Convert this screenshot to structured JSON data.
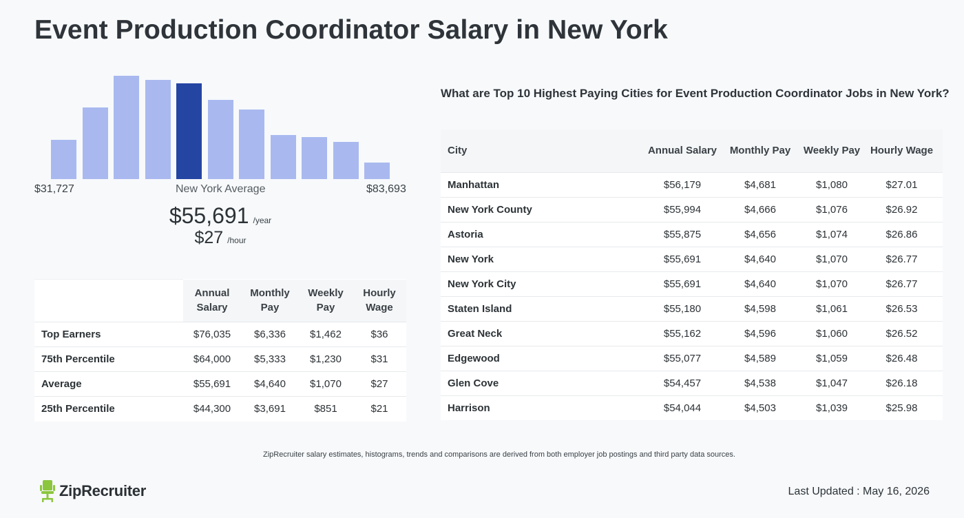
{
  "title": "Event Production Coordinator Salary in New York",
  "histogram": {
    "bars": [
      0.37,
      0.68,
      0.98,
      0.94,
      0.91,
      0.75,
      0.66,
      0.42,
      0.4,
      0.35,
      0.16
    ],
    "highlight_index": 4,
    "bar_color": "#a9b9f0",
    "highlight_color": "#2545a3",
    "min_label": "$31,727",
    "max_label": "$83,693",
    "mid_label": "New York Average"
  },
  "average": {
    "annual": "$55,691",
    "annual_unit": "/year",
    "hourly": "$27",
    "hourly_unit": "/hour"
  },
  "percentiles": {
    "headers": [
      "Annual Salary",
      "Monthly Pay",
      "Weekly Pay",
      "Hourly Wage"
    ],
    "rows": [
      {
        "label": "Top Earners",
        "values": [
          "$76,035",
          "$6,336",
          "$1,462",
          "$36"
        ]
      },
      {
        "label": "75th Percentile",
        "values": [
          "$64,000",
          "$5,333",
          "$1,230",
          "$31"
        ]
      },
      {
        "label": "Average",
        "values": [
          "$55,691",
          "$4,640",
          "$1,070",
          "$27"
        ]
      },
      {
        "label": "25th Percentile",
        "values": [
          "$44,300",
          "$3,691",
          "$851",
          "$21"
        ]
      }
    ]
  },
  "cities": {
    "heading": "What are Top 10 Highest Paying Cities for Event Production Coordinator Jobs in New York?",
    "headers": [
      "City",
      "Annual Salary",
      "Monthly Pay",
      "Weekly Pay",
      "Hourly Wage"
    ],
    "rows": [
      {
        "city": "Manhattan",
        "values": [
          "$56,179",
          "$4,681",
          "$1,080",
          "$27.01"
        ]
      },
      {
        "city": "New York County",
        "values": [
          "$55,994",
          "$4,666",
          "$1,076",
          "$26.92"
        ]
      },
      {
        "city": "Astoria",
        "values": [
          "$55,875",
          "$4,656",
          "$1,074",
          "$26.86"
        ]
      },
      {
        "city": "New York",
        "values": [
          "$55,691",
          "$4,640",
          "$1,070",
          "$26.77"
        ]
      },
      {
        "city": "New York City",
        "values": [
          "$55,691",
          "$4,640",
          "$1,070",
          "$26.77"
        ]
      },
      {
        "city": "Staten Island",
        "values": [
          "$55,180",
          "$4,598",
          "$1,061",
          "$26.53"
        ]
      },
      {
        "city": "Great Neck",
        "values": [
          "$55,162",
          "$4,596",
          "$1,060",
          "$26.52"
        ]
      },
      {
        "city": "Edgewood",
        "values": [
          "$55,077",
          "$4,589",
          "$1,059",
          "$26.48"
        ]
      },
      {
        "city": "Glen Cove",
        "values": [
          "$54,457",
          "$4,538",
          "$1,047",
          "$26.18"
        ]
      },
      {
        "city": "Harrison",
        "values": [
          "$54,044",
          "$4,503",
          "$1,039",
          "$25.98"
        ]
      }
    ]
  },
  "footnote": "ZipRecruiter salary estimates, histograms, trends and comparisons are derived from both employer job postings and third party data sources.",
  "logo": {
    "text": "ZipRecruiter",
    "icon": "ziprecruiter-chair-icon",
    "color": "#8cc63e"
  },
  "last_updated": "Last Updated : May 16, 2026"
}
